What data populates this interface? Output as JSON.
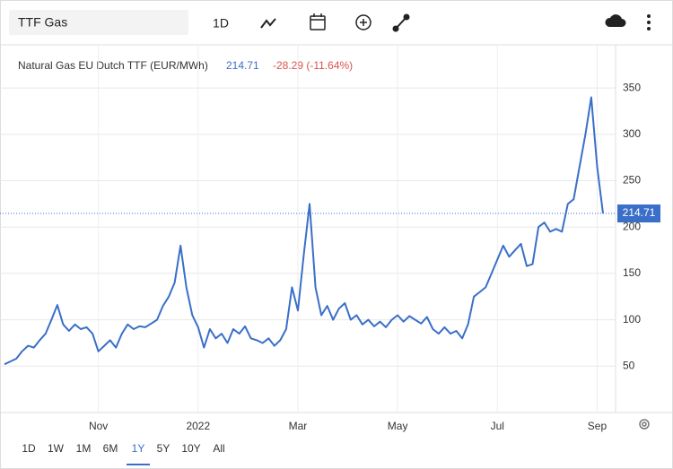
{
  "toolbar": {
    "search": "TTF Gas",
    "interval": "1D"
  },
  "ranges": [
    "1D",
    "1W",
    "1M",
    "6M",
    "1Y",
    "5Y",
    "10Y",
    "All"
  ],
  "chart_data": {
    "type": "line",
    "grid": true,
    "title": "Natural Gas EU Dutch TTF (EUR/MWh)",
    "change": "-28.29 (-11.64%)",
    "categories": [
      null,
      null,
      null,
      null,
      null,
      null,
      null,
      null,
      null,
      null,
      null,
      null,
      null,
      null,
      null,
      null,
      "Nov",
      null,
      null,
      null,
      null,
      null,
      null,
      null,
      null,
      null,
      null,
      null,
      null,
      null,
      null,
      null,
      null,
      "2022",
      null,
      null,
      null,
      null,
      null,
      null,
      null,
      null,
      null,
      null,
      null,
      null,
      null,
      null,
      null,
      null,
      "Mar",
      null,
      null,
      null,
      null,
      null,
      null,
      null,
      null,
      null,
      null,
      null,
      null,
      null,
      null,
      null,
      null,
      "May",
      null,
      null,
      null,
      null,
      null,
      null,
      null,
      null,
      null,
      null,
      null,
      null,
      null,
      null,
      null,
      null,
      "Jul",
      null,
      null,
      null,
      null,
      null,
      null,
      null,
      null,
      null,
      null,
      null,
      null,
      null,
      null,
      null,
      null,
      "Sep",
      null
    ],
    "series": [
      {
        "name": "Natural Gas EU Dutch TTF",
        "color": "#3a6fc9",
        "values": [
          52,
          55,
          58,
          66,
          72,
          70,
          78,
          85,
          100,
          116,
          95,
          88,
          95,
          90,
          92,
          85,
          66,
          72,
          78,
          70,
          85,
          95,
          90,
          93,
          92,
          96,
          100,
          115,
          125,
          140,
          180,
          135,
          105,
          92,
          70,
          90,
          80,
          85,
          75,
          90,
          85,
          93,
          80,
          78,
          75,
          80,
          72,
          78,
          90,
          135,
          110,
          170,
          225,
          135,
          105,
          115,
          100,
          112,
          118,
          100,
          105,
          95,
          100,
          93,
          98,
          92,
          100,
          105,
          98,
          104,
          100,
          96,
          103,
          90,
          85,
          92,
          85,
          88,
          80,
          95,
          125,
          130,
          135,
          150,
          165,
          180,
          168,
          175,
          182,
          158,
          160,
          200,
          205,
          195,
          198,
          195,
          225,
          230,
          265,
          300,
          340,
          265,
          214.71
        ]
      }
    ],
    "ylim": [
      0,
      385
    ],
    "yticks": [
      50,
      100,
      150,
      200,
      250,
      300,
      350
    ]
  }
}
